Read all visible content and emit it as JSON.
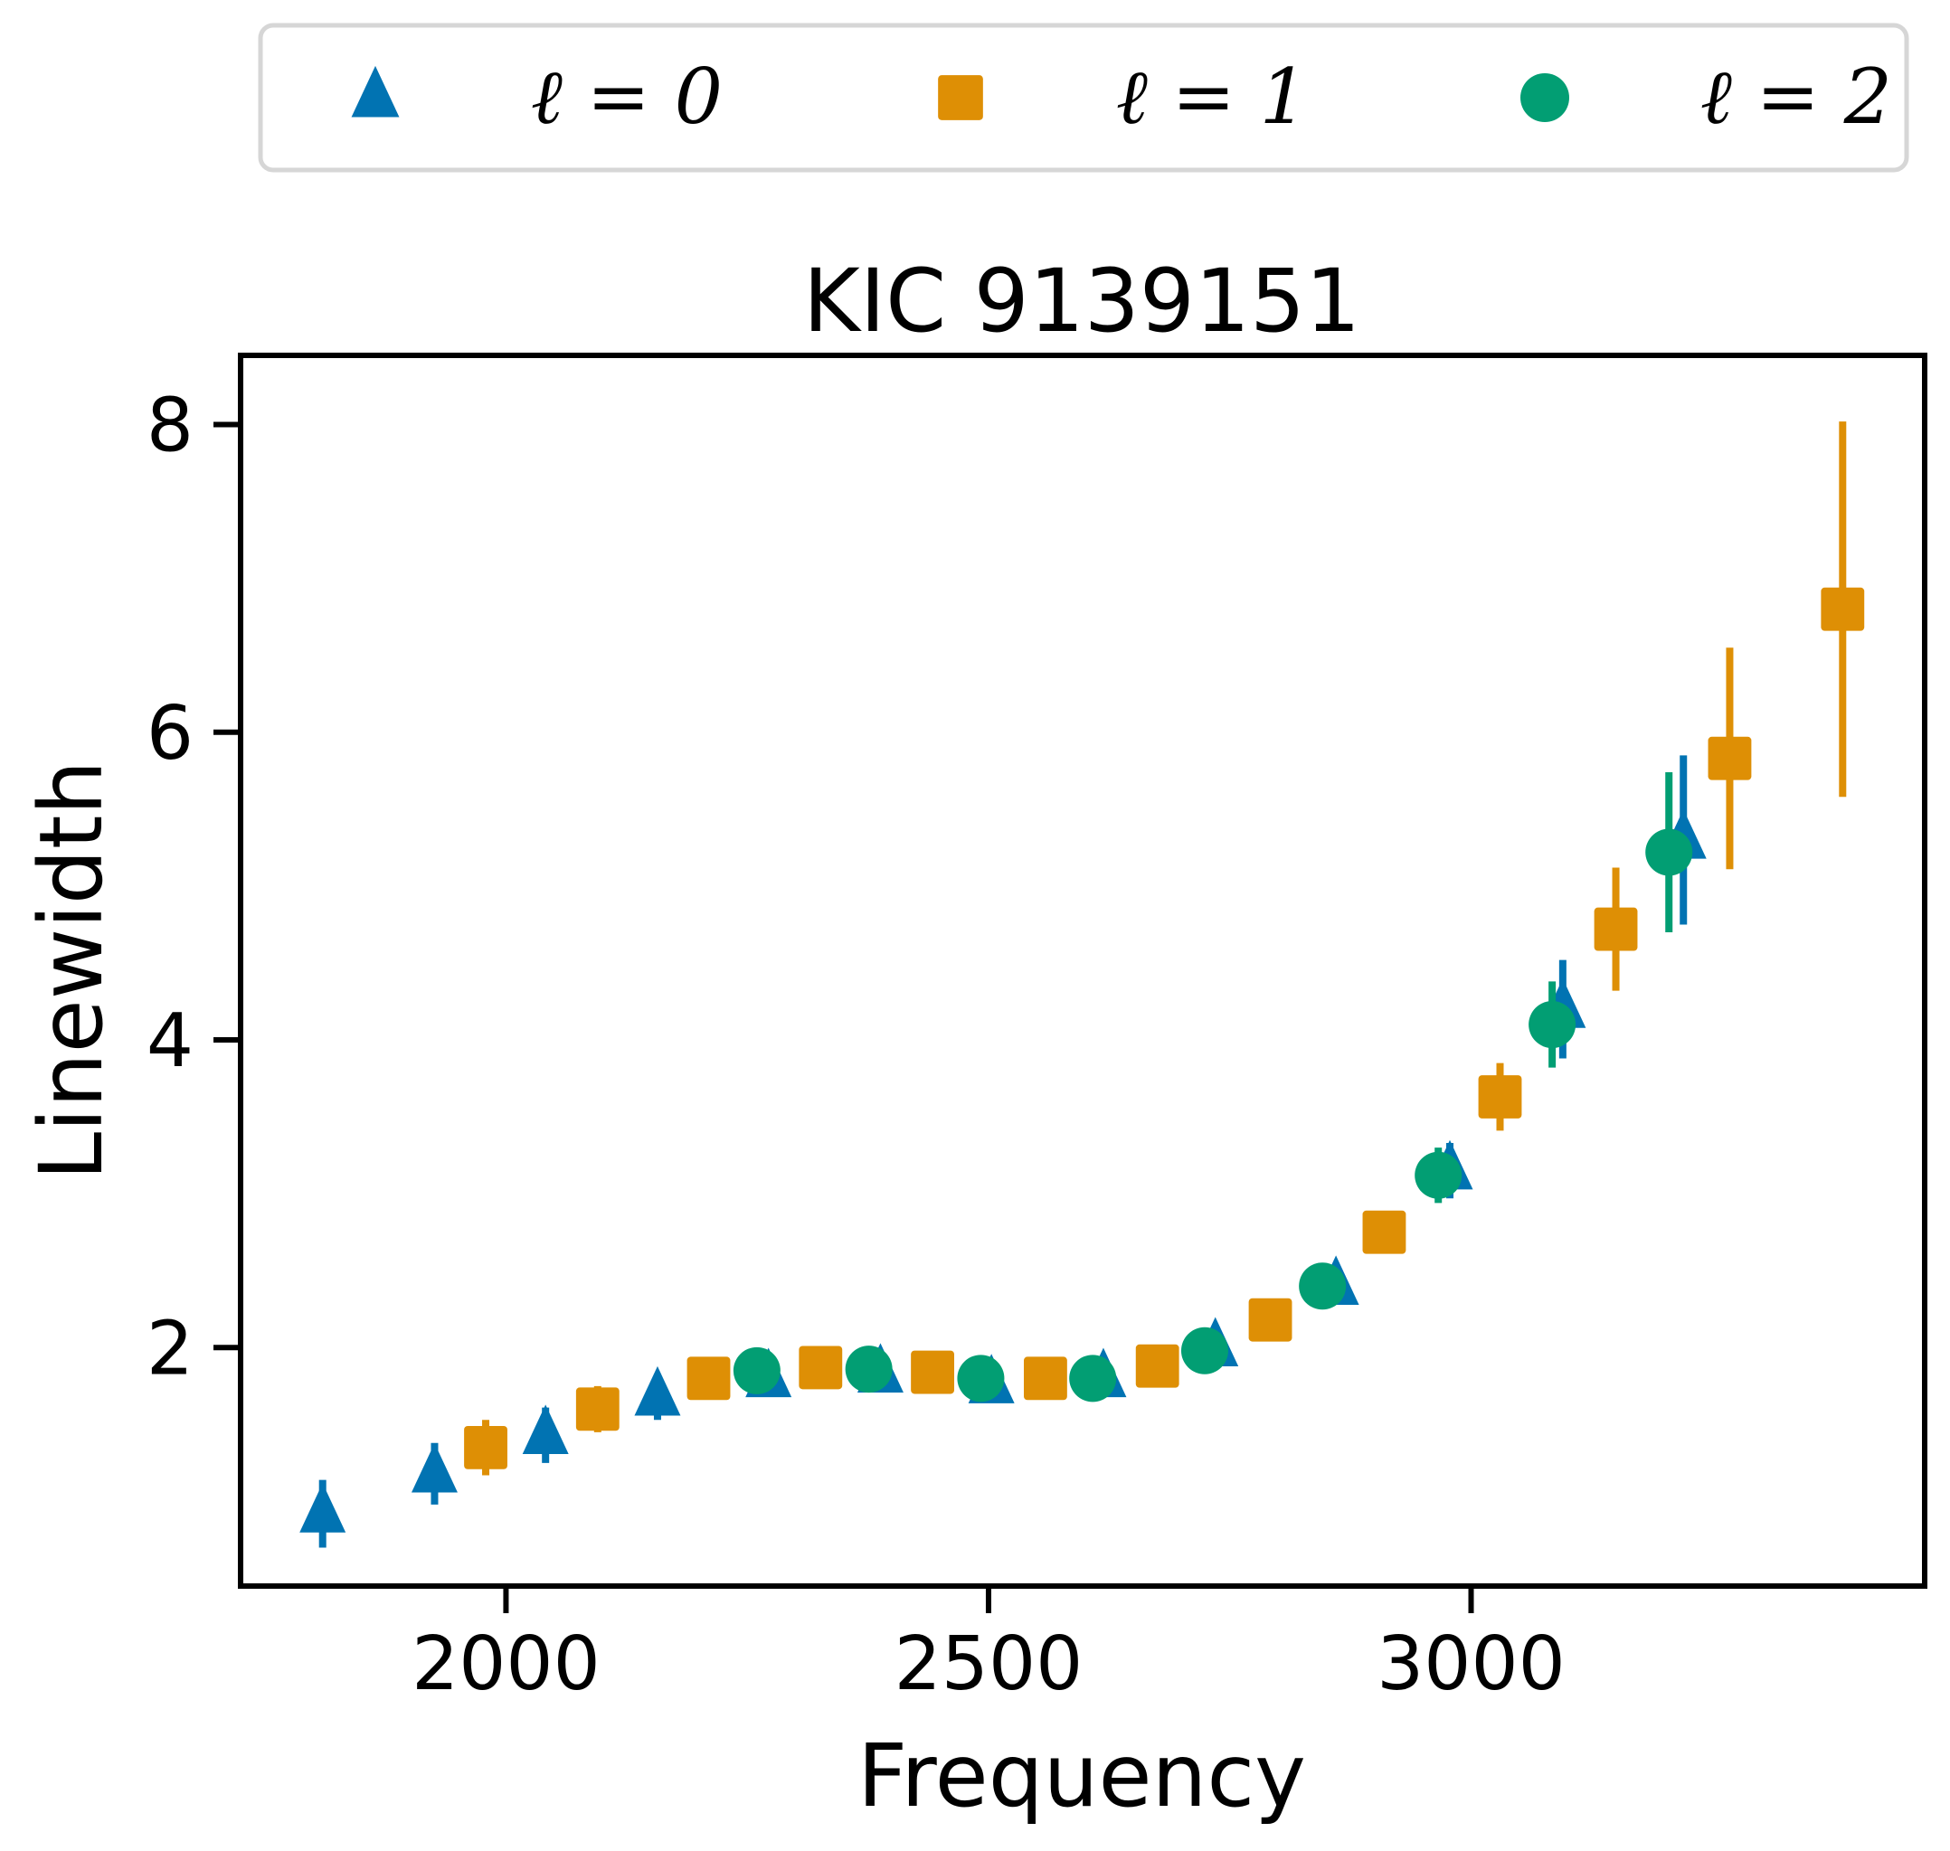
{
  "chart_data": {
    "type": "scatter",
    "title": "KIC 9139151",
    "xlabel": "Frequency",
    "ylabel": "Linewidth",
    "xlim": [
      1725,
      3470
    ],
    "ylim": [
      0.45,
      8.45
    ],
    "xticks": [
      2000,
      2500,
      3000
    ],
    "yticks": [
      2,
      4,
      6,
      8
    ],
    "grid": false,
    "legend": "top, outside, 3 columns",
    "series": [
      {
        "name": "ℓ = 0",
        "marker": "triangle",
        "color": "#0173b2",
        "points": [
          {
            "x": 1810,
            "y": 0.92,
            "err": 0.22
          },
          {
            "x": 1926,
            "y": 1.18,
            "err": 0.2
          },
          {
            "x": 2041,
            "y": 1.43,
            "err": 0.18
          },
          {
            "x": 2157,
            "y": 1.68,
            "err": 0.15
          },
          {
            "x": 2272,
            "y": 1.8,
            "err": 0.12
          },
          {
            "x": 2388,
            "y": 1.83,
            "err": 0.1
          },
          {
            "x": 2503,
            "y": 1.76,
            "err": 0.08
          },
          {
            "x": 2619,
            "y": 1.8,
            "err": 0.1
          },
          {
            "x": 2735,
            "y": 2.0,
            "err": 0.1
          },
          {
            "x": 2860,
            "y": 2.4,
            "err": 0.12
          },
          {
            "x": 2978,
            "y": 3.15,
            "err": 0.18
          },
          {
            "x": 3095,
            "y": 4.2,
            "err": 0.32
          },
          {
            "x": 3220,
            "y": 5.3,
            "err": 0.55
          }
        ]
      },
      {
        "name": "ℓ = 1",
        "marker": "square",
        "color": "#de8f05",
        "points": [
          {
            "x": 1979,
            "y": 1.35,
            "err": 0.18
          },
          {
            "x": 2095,
            "y": 1.6,
            "err": 0.15
          },
          {
            "x": 2210,
            "y": 1.8,
            "err": 0.12
          },
          {
            "x": 2326,
            "y": 1.87,
            "err": 0.1
          },
          {
            "x": 2442,
            "y": 1.84,
            "err": 0.08
          },
          {
            "x": 2559,
            "y": 1.8,
            "err": 0.08
          },
          {
            "x": 2675,
            "y": 1.88,
            "err": 0.08
          },
          {
            "x": 2792,
            "y": 2.18,
            "err": 0.1
          },
          {
            "x": 2910,
            "y": 2.75,
            "err": 0.12
          },
          {
            "x": 3030,
            "y": 3.63,
            "err": 0.22
          },
          {
            "x": 3150,
            "y": 4.72,
            "err": 0.4
          },
          {
            "x": 3268,
            "y": 5.83,
            "err": 0.72
          },
          {
            "x": 3385,
            "y": 6.8,
            "err": 1.22
          }
        ]
      },
      {
        "name": "ℓ = 2",
        "marker": "circle",
        "color": "#029e73",
        "points": [
          {
            "x": 2260,
            "y": 1.85,
            "err": 0.08
          },
          {
            "x": 2376,
            "y": 1.86,
            "err": 0.08
          },
          {
            "x": 2492,
            "y": 1.8,
            "err": 0.08
          },
          {
            "x": 2608,
            "y": 1.8,
            "err": 0.08
          },
          {
            "x": 2724,
            "y": 1.98,
            "err": 0.08
          },
          {
            "x": 2846,
            "y": 2.4,
            "err": 0.1
          },
          {
            "x": 2966,
            "y": 3.12,
            "err": 0.18
          },
          {
            "x": 3084,
            "y": 4.1,
            "err": 0.28
          },
          {
            "x": 3205,
            "y": 5.22,
            "err": 0.52
          }
        ]
      }
    ]
  }
}
